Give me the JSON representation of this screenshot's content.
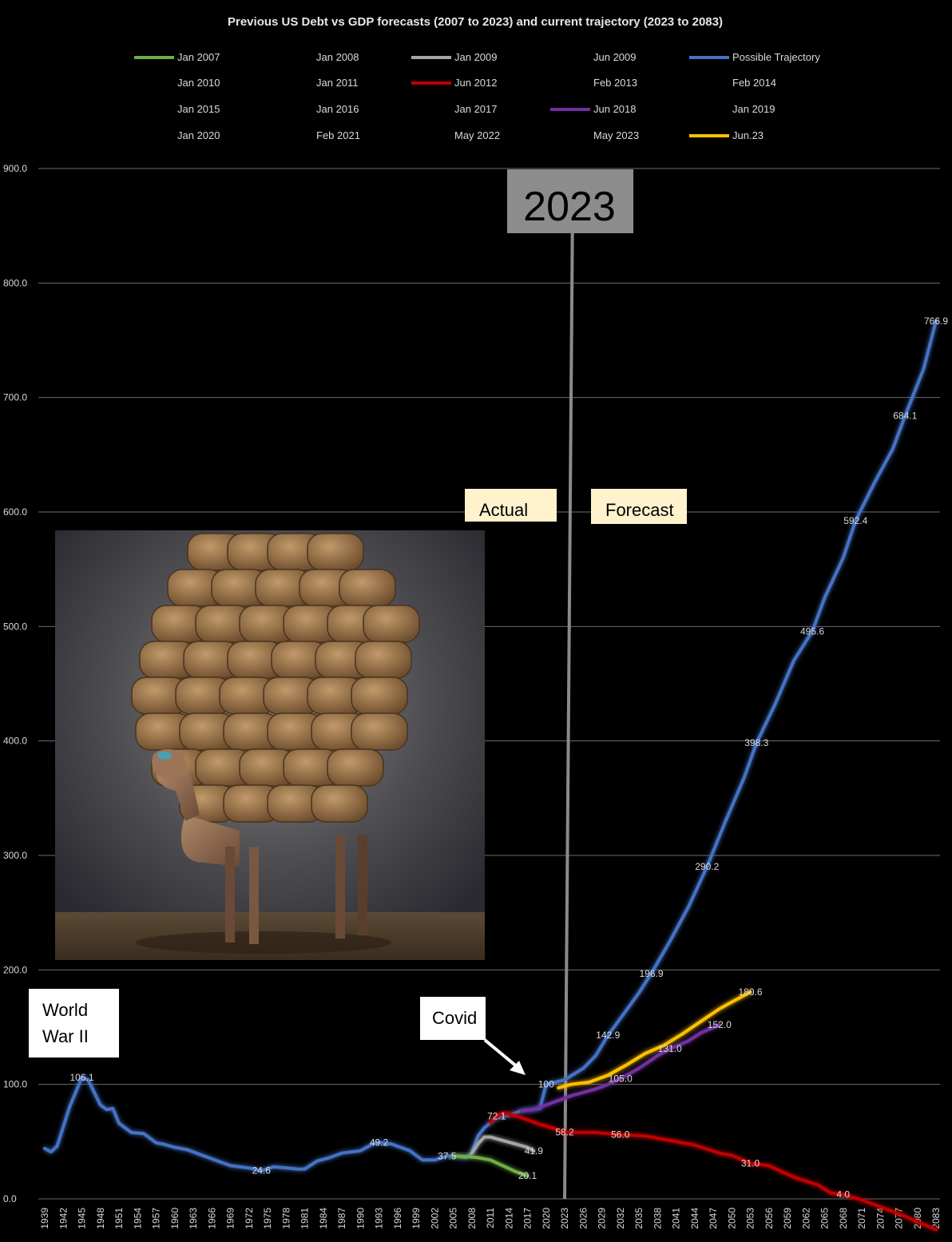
{
  "chart_data": {
    "type": "line",
    "title": "Previous US Debt vs GDP forecasts (2007 to 2023) and current trajectory (2023 to 2083)",
    "ylim": [
      0,
      900
    ],
    "yticks": [
      "0.0",
      "100.0",
      "200.0",
      "300.0",
      "400.0",
      "500.0",
      "600.0",
      "700.0",
      "800.0",
      "900.0"
    ],
    "xlim": [
      1939,
      2083
    ],
    "xticks": [
      1939,
      1942,
      1945,
      1948,
      1951,
      1954,
      1957,
      1960,
      1963,
      1966,
      1969,
      1972,
      1975,
      1978,
      1981,
      1984,
      1987,
      1990,
      1993,
      1996,
      1999,
      2002,
      2005,
      2008,
      2011,
      2014,
      2017,
      2020,
      2023,
      2026,
      2029,
      2032,
      2035,
      2038,
      2041,
      2044,
      2047,
      2050,
      2053,
      2056,
      2059,
      2062,
      2065,
      2068,
      2071,
      2074,
      2077,
      2080,
      2083
    ],
    "grid": true,
    "legend_position": "top",
    "legend": [
      {
        "label": "Jan 2007",
        "color": "#70ad47"
      },
      {
        "label": "Jan 2008",
        "color": ""
      },
      {
        "label": "Jan 2009",
        "color": "#a5a5a5"
      },
      {
        "label": "Jun 2009",
        "color": ""
      },
      {
        "label": "Possible Trajectory",
        "color": "#4472c4"
      },
      {
        "label": "Jan 2010",
        "color": ""
      },
      {
        "label": "Jan 2011",
        "color": ""
      },
      {
        "label": "Jun 2012",
        "color": "#c00000"
      },
      {
        "label": "Feb 2013",
        "color": ""
      },
      {
        "label": "Feb 2014",
        "color": ""
      },
      {
        "label": "Jan 2015",
        "color": ""
      },
      {
        "label": "Jan 2016",
        "color": ""
      },
      {
        "label": "Jan 2017",
        "color": ""
      },
      {
        "label": "Jun 2018",
        "color": "#7030a0"
      },
      {
        "label": "Jan 2019",
        "color": ""
      },
      {
        "label": "Jan 2020",
        "color": ""
      },
      {
        "label": "Feb 2021",
        "color": ""
      },
      {
        "label": "May 2022",
        "color": ""
      },
      {
        "label": "May 2023",
        "color": ""
      },
      {
        "label": "Jun.23",
        "color": "#ffc000"
      }
    ],
    "series": [
      {
        "name": "Possible Trajectory",
        "color": "#4472c4",
        "points": [
          [
            1939,
            44
          ],
          [
            1940,
            41
          ],
          [
            1941,
            46
          ],
          [
            1943,
            80
          ],
          [
            1945,
            106.1
          ],
          [
            1946,
            104
          ],
          [
            1948,
            82
          ],
          [
            1949,
            78
          ],
          [
            1950,
            79
          ],
          [
            1951,
            66
          ],
          [
            1953,
            58
          ],
          [
            1955,
            57
          ],
          [
            1957,
            49
          ],
          [
            1958,
            48
          ],
          [
            1960,
            45
          ],
          [
            1962,
            43
          ],
          [
            1965,
            37
          ],
          [
            1967,
            33
          ],
          [
            1969,
            29
          ],
          [
            1972,
            27
          ],
          [
            1974,
            24.6
          ],
          [
            1976,
            28
          ],
          [
            1978,
            27
          ],
          [
            1980,
            26
          ],
          [
            1981,
            26
          ],
          [
            1983,
            33
          ],
          [
            1985,
            36
          ],
          [
            1987,
            40
          ],
          [
            1990,
            42
          ],
          [
            1992,
            48
          ],
          [
            1993,
            49.2
          ],
          [
            1995,
            48
          ],
          [
            1998,
            42
          ],
          [
            2000,
            34
          ],
          [
            2002,
            34
          ],
          [
            2004,
            37.5
          ],
          [
            2006,
            37
          ],
          [
            2007,
            36
          ],
          [
            2008,
            40
          ],
          [
            2009,
            55
          ],
          [
            2010,
            62
          ],
          [
            2012,
            71
          ],
          [
            2014,
            73
          ],
          [
            2016,
            77
          ],
          [
            2019,
            79
          ],
          [
            2020,
            100
          ],
          [
            2023,
            104
          ],
          [
            2026,
            114
          ],
          [
            2028,
            125
          ],
          [
            2030,
            142.9
          ],
          [
            2033,
            165
          ],
          [
            2035,
            180
          ],
          [
            2037,
            196.9
          ],
          [
            2040,
            225
          ],
          [
            2043,
            255
          ],
          [
            2046,
            290.2
          ],
          [
            2049,
            330
          ],
          [
            2052,
            368
          ],
          [
            2054,
            398.3
          ],
          [
            2057,
            432
          ],
          [
            2060,
            470
          ],
          [
            2063,
            495.6
          ],
          [
            2065,
            525
          ],
          [
            2068,
            560
          ],
          [
            2070,
            592.4
          ],
          [
            2073,
            625
          ],
          [
            2076,
            655
          ],
          [
            2078,
            684.1
          ],
          [
            2081,
            725
          ],
          [
            2083,
            766.9
          ]
        ]
      },
      {
        "name": "Jan 2007",
        "color": "#70ad47",
        "points": [
          [
            2005,
            37.5
          ],
          [
            2007,
            37
          ],
          [
            2009,
            36
          ],
          [
            2011,
            34
          ],
          [
            2013,
            29
          ],
          [
            2015,
            24
          ],
          [
            2017,
            20.1
          ]
        ]
      },
      {
        "name": "Jan 2009",
        "color": "#a5a5a5",
        "points": [
          [
            2008,
            40
          ],
          [
            2009,
            48
          ],
          [
            2010,
            54
          ],
          [
            2011,
            54
          ],
          [
            2013,
            51
          ],
          [
            2015,
            48
          ],
          [
            2017,
            45
          ],
          [
            2018,
            41.9
          ]
        ]
      },
      {
        "name": "Jun 2012",
        "color": "#c00000",
        "points": [
          [
            2011,
            67
          ],
          [
            2012,
            72.1
          ],
          [
            2013,
            75
          ],
          [
            2014,
            74
          ],
          [
            2016,
            71
          ],
          [
            2019,
            65
          ],
          [
            2021,
            62
          ],
          [
            2023,
            58.2
          ],
          [
            2025,
            58
          ],
          [
            2028,
            58
          ],
          [
            2032,
            56
          ],
          [
            2036,
            55
          ],
          [
            2040,
            51
          ],
          [
            2044,
            47
          ],
          [
            2048,
            40
          ],
          [
            2050,
            38
          ],
          [
            2053,
            31
          ],
          [
            2056,
            29
          ],
          [
            2060,
            19
          ],
          [
            2064,
            12
          ],
          [
            2066,
            5
          ],
          [
            2068,
            4
          ],
          [
            2071,
            -1
          ],
          [
            2074,
            -7
          ],
          [
            2077,
            -13
          ],
          [
            2080,
            -20
          ],
          [
            2083,
            -27
          ]
        ]
      },
      {
        "name": "Jun 2018",
        "color": "#7030a0",
        "points": [
          [
            2016,
            77
          ],
          [
            2018,
            78
          ],
          [
            2020,
            82
          ],
          [
            2022,
            86
          ],
          [
            2024,
            90
          ],
          [
            2028,
            96
          ],
          [
            2030,
            100
          ],
          [
            2032,
            105.0
          ],
          [
            2035,
            114
          ],
          [
            2038,
            125
          ],
          [
            2040,
            131.0
          ],
          [
            2043,
            138
          ],
          [
            2045,
            145
          ],
          [
            2048,
            152.0
          ]
        ]
      },
      {
        "name": "Jun.23",
        "color": "#ffc000",
        "points": [
          [
            2022,
            97
          ],
          [
            2024,
            100
          ],
          [
            2027,
            102
          ],
          [
            2030,
            108
          ],
          [
            2033,
            117
          ],
          [
            2036,
            127
          ],
          [
            2039,
            134
          ],
          [
            2042,
            144
          ],
          [
            2045,
            155
          ],
          [
            2048,
            166
          ],
          [
            2050,
            172
          ],
          [
            2053,
            180.6
          ]
        ]
      }
    ],
    "data_labels": [
      {
        "text": "106.1",
        "x": 1945,
        "y": 106.1
      },
      {
        "text": "24.6",
        "x": 1974,
        "y": 24.6
      },
      {
        "text": "49.2",
        "x": 1993,
        "y": 49.2
      },
      {
        "text": "37.5",
        "x": 2004,
        "y": 37.5
      },
      {
        "text": "20.1",
        "x": 2017,
        "y": 20.1
      },
      {
        "text": "41.9",
        "x": 2018,
        "y": 41.9
      },
      {
        "text": "72.1",
        "x": 2012,
        "y": 72.1
      },
      {
        "text": "100",
        "x": 2020,
        "y": 100
      },
      {
        "text": "58.2",
        "x": 2023,
        "y": 58.2
      },
      {
        "text": "56.0",
        "x": 2032,
        "y": 56.0
      },
      {
        "text": "105.0",
        "x": 2032,
        "y": 105.0
      },
      {
        "text": "131.0",
        "x": 2040,
        "y": 131.0
      },
      {
        "text": "152.0",
        "x": 2048,
        "y": 152.0
      },
      {
        "text": "180.6",
        "x": 2053,
        "y": 180.6
      },
      {
        "text": "142.9",
        "x": 2030,
        "y": 142.9
      },
      {
        "text": "196.9",
        "x": 2037,
        "y": 196.9
      },
      {
        "text": "290.2",
        "x": 2046,
        "y": 290.2
      },
      {
        "text": "398.3",
        "x": 2054,
        "y": 398.3
      },
      {
        "text": "495.6",
        "x": 2063,
        "y": 495.6
      },
      {
        "text": "592.4",
        "x": 2070,
        "y": 592.4
      },
      {
        "text": "684.1",
        "x": 2078,
        "y": 684.1
      },
      {
        "text": "766.9",
        "x": 2083,
        "y": 766.9
      },
      {
        "text": "31.0",
        "x": 2053,
        "y": 31.0
      },
      {
        "text": "4.0",
        "x": 2068,
        "y": 4.0
      }
    ],
    "annotations": {
      "year_marker": {
        "text": "2023",
        "x": 2023
      },
      "actual": "Actual",
      "forecast": "Forecast",
      "world_war_line1": "World",
      "world_war_line2": "War II",
      "covid": "Covid"
    }
  }
}
